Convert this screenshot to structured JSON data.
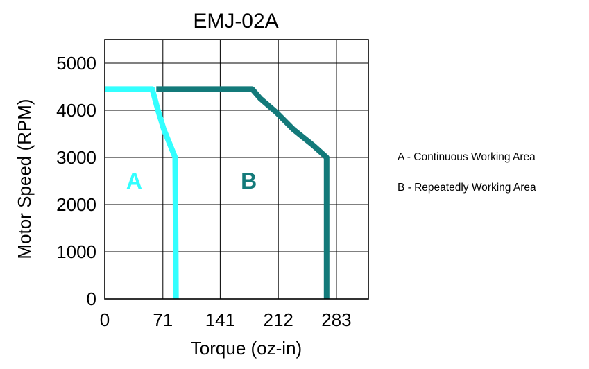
{
  "chart_data": {
    "type": "area",
    "title": "EMJ-02A",
    "xlabel": "Torque (oz-in)",
    "ylabel": "Motor Speed (RPM)",
    "xlim": [
      0,
      322
    ],
    "ylim": [
      0,
      5500
    ],
    "x_ticks": [
      0,
      71,
      141,
      212,
      283
    ],
    "y_ticks": [
      0,
      1000,
      2000,
      3000,
      4000,
      5000
    ],
    "grid": true,
    "series": [
      {
        "name": "A",
        "color": "#33ffff",
        "points": [
          [
            0,
            4450
          ],
          [
            58,
            4450
          ],
          [
            65,
            4000
          ],
          [
            72,
            3600
          ],
          [
            86,
            3000
          ],
          [
            87,
            0
          ]
        ]
      },
      {
        "name": "B",
        "color": "#137a7a",
        "points": [
          [
            63,
            4450
          ],
          [
            180,
            4450
          ],
          [
            190,
            4250
          ],
          [
            210,
            3950
          ],
          [
            230,
            3600
          ],
          [
            255,
            3250
          ],
          [
            271,
            3000
          ],
          [
            271,
            0
          ]
        ]
      }
    ],
    "region_labels": [
      {
        "text": "A",
        "x": 36,
        "y": 2500,
        "color": "#33ffff"
      },
      {
        "text": "B",
        "x": 176,
        "y": 2500,
        "color": "#137a7a"
      }
    ]
  },
  "legend_notes": [
    "A - Continuous Working Area",
    "B - Repeatedly Working Area"
  ]
}
